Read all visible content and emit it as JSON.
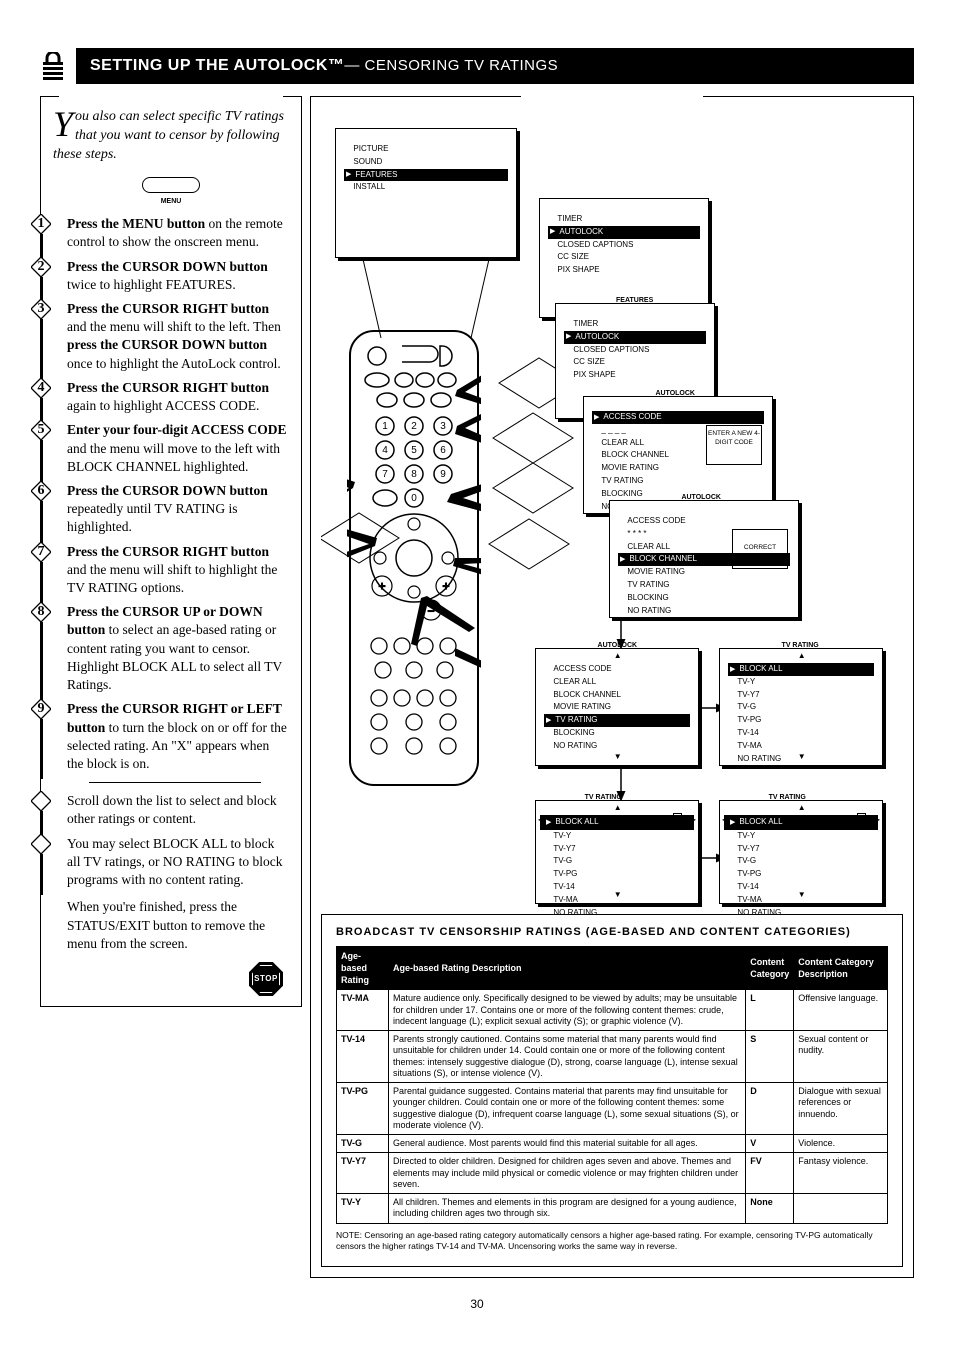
{
  "header": {
    "title_main": "SETTING UP THE AUTOLOCK™",
    "title_sub": " — CENSORING TV RATINGS",
    "lock_icon": "lock-icon"
  },
  "intro": {
    "first_letter": "Y",
    "rest": "ou also can select specific TV ratings that you want to censor by following these steps."
  },
  "menu_pill_label": "MENU",
  "steps": [
    {
      "n": "1",
      "bold": "Press the MENU button",
      "rest": " on the remote control to show the onscreen menu."
    },
    {
      "n": "2",
      "bold": "Press the CURSOR DOWN button",
      "rest": " twice to highlight FEATURES."
    },
    {
      "n": "3",
      "bold": "Press the CURSOR RIGHT button",
      "rest": " and the menu will shift to the left. Then ",
      "bold2": "press the CURSOR DOWN button",
      "rest2": " once to highlight the AutoLock control."
    },
    {
      "n": "4",
      "bold": "Press the CURSOR RIGHT button",
      "rest": " again to highlight ACCESS CODE."
    },
    {
      "n": "5",
      "bold": "Enter your four-digit ACCESS CODE",
      "rest": " and the menu will move to the left with BLOCK CHANNEL highlighted."
    },
    {
      "n": "6",
      "bold": "Press the CURSOR DOWN button",
      "rest": " repeatedly until TV RATING is highlighted."
    },
    {
      "n": "7",
      "bold": "Press the CURSOR RIGHT button",
      "rest": " and the menu will shift to highlight the TV RATING options."
    }
  ],
  "step8": {
    "n": "8",
    "bold": "Press the CURSOR UP or DOWN button",
    "rest": " to select an age-based rating or content rating you want to censor. Highlight BLOCK ALL to select all TV Ratings."
  },
  "step9": {
    "n": "9",
    "bold": "Press the CURSOR RIGHT or LEFT button",
    "rest": " to turn the block on or off for the selected rating. An \"X\" appears when the block is on."
  },
  "small_steps": [
    "Scroll down the list to select and block other ratings or content.",
    "You may select BLOCK ALL to block all TV ratings, or NO RATING to block programs with no content rating."
  ],
  "stop_tip": "When you're finished, press the STATUS/EXIT button to remove the menu from the screen.",
  "stop_label": "STOP",
  "panels": {
    "p1": {
      "items": [
        "PICTURE",
        "SOUND",
        "FEATURES",
        "INSTALL"
      ],
      "sel": 2
    },
    "p2": {
      "items": [
        "TIMER",
        "AUTOLOCK",
        "CLOSED CAPTIONS",
        "CC SIZE",
        "PIX SHAPE"
      ],
      "sel": 1
    },
    "p3": {
      "hdr": "FEATURES",
      "items": [
        "TIMER",
        "AUTOLOCK",
        "CLOSED CAPTIONS",
        "CC SIZE",
        "PIX SHAPE"
      ],
      "sel": 1
    },
    "p4": {
      "hdr": "AUTOLOCK",
      "items": [
        "ACCESS CODE",
        "_ _ _ _",
        "CLEAR ALL",
        "BLOCK CHANNEL",
        "MOVIE RATING",
        "TV RATING",
        "BLOCKING",
        "NO RATING"
      ],
      "sel": 0,
      "note": "ENTER A NEW 4-DIGIT CODE"
    },
    "p5": {
      "hdr": "AUTOLOCK",
      "items": [
        "ACCESS CODE",
        "* * * *",
        "CLEAR ALL",
        "BLOCK CHANNEL",
        "MOVIE RATING",
        "TV RATING",
        "BLOCKING",
        "NO RATING"
      ],
      "sel": 3,
      "note": "CORRECT"
    },
    "p6a": {
      "hdr": "AUTOLOCK",
      "items": [
        "ACCESS CODE",
        "CLEAR ALL",
        "BLOCK CHANNEL",
        "MOVIE RATING",
        "TV RATING",
        "BLOCKING",
        "NO RATING"
      ],
      "sel": 4,
      "foot": true
    },
    "p6b": {
      "hdr": "TV RATING",
      "items": [
        "BLOCK ALL",
        "TV-Y",
        "TV-Y7",
        "TV-G",
        "TV-PG",
        "TV-14",
        "TV-MA",
        "NO RATING"
      ],
      "sel": 0,
      "foot": true
    },
    "p7a": {
      "hdr": "TV RATING",
      "items": [
        "BLOCK ALL",
        "TV-Y",
        "TV-Y7",
        "TV-G",
        "TV-PG",
        "TV-14",
        "TV-MA",
        "NO RATING"
      ],
      "box": true,
      "foot": true
    },
    "p7b": {
      "hdr": "TV RATING",
      "items": [
        "BLOCK ALL",
        "TV-Y",
        "TV-Y7",
        "TV-G",
        "TV-PG",
        "TV-14",
        "TV-MA",
        "NO RATING"
      ],
      "boxfill": true,
      "foot": true
    }
  },
  "ratings": {
    "title": "BROADCAST TV CENSORSHIP RATINGS (AGE-BASED AND CONTENT CATEGORIES)",
    "headers": [
      "Age-based Rating",
      "Age-based Rating Description",
      "Content Category",
      "Content Category Description"
    ],
    "rows": [
      {
        "age": "TV-MA",
        "age_desc": "Mature audience only. Specifically designed to be viewed by adults; may be unsuitable for children under 17. Contains one or more of the following content themes: crude, indecent language (L); explicit sexual activity (S); or graphic violence (V).",
        "cat": "L",
        "cat_desc": "Offensive language."
      },
      {
        "age": "TV-14",
        "age_desc": "Parents strongly cautioned. Contains some material that many parents would find unsuitable for children under 14. Could contain one or more of the following content themes: intensely suggestive dialogue (D), strong, coarse language (L), intense sexual situations (S), or intense violence (V).",
        "cat": "S",
        "cat_desc": "Sexual content or nudity."
      },
      {
        "age": "TV-PG",
        "age_desc": "Parental guidance suggested. Contains material that parents may find unsuitable for younger children. Could contain one or more of the following content themes: some suggestive dialogue (D), infrequent coarse language (L), some sexual situations (S), or moderate violence (V).",
        "cat": "D",
        "cat_desc": "Dialogue with sexual references or innuendo."
      },
      {
        "age": "TV-G",
        "age_desc": "General audience. Most parents would find this material suitable for all ages.",
        "cat": "V",
        "cat_desc": "Violence."
      },
      {
        "age": "TV-Y7",
        "age_desc": "Directed to older children. Designed for children ages seven and above. Themes and elements may include mild physical or comedic violence or may frighten children under seven.",
        "cat": "FV",
        "cat_desc": "Fantasy violence."
      },
      {
        "age": "TV-Y",
        "age_desc": "All children. Themes and elements in this program are designed for a young audience, including children ages two through six.",
        "cat": "None",
        "cat_desc": ""
      }
    ],
    "note": "NOTE: Censoring an age-based rating category automatically censors a higher age-based rating. For example, censoring TV-PG automatically censors the higher ratings TV-14 and TV-MA. Uncensoring works the same way in reverse."
  },
  "page_number": "30",
  "colors": {
    "black": "#000000",
    "white": "#ffffff",
    "watermark": "#e6e6e6"
  }
}
